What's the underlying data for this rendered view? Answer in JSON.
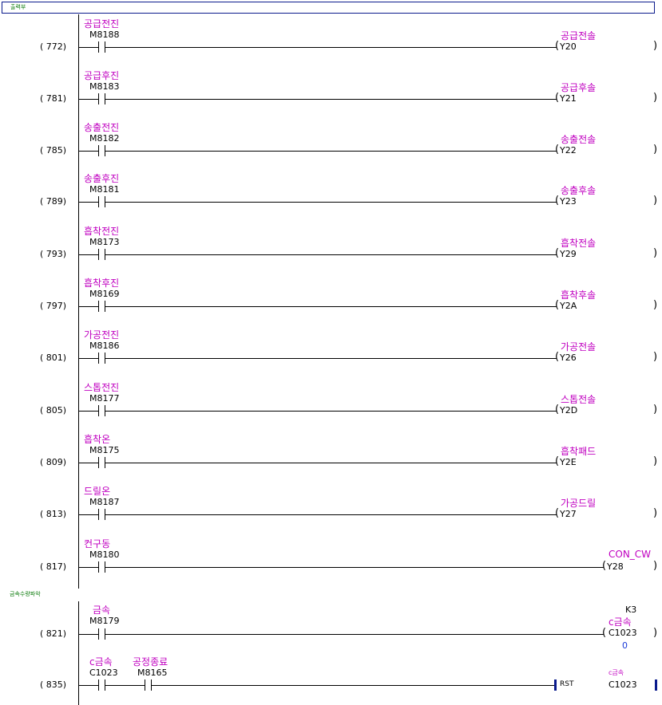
{
  "header": {
    "title": "출력부"
  },
  "rungs": [
    {
      "step": "(  772)",
      "label": "공급전진",
      "contact": "M8188",
      "coil_label": "공급전솔",
      "coil": "Y20"
    },
    {
      "step": "(  781)",
      "label": "공급후진",
      "contact": "M8183",
      "coil_label": "공급후솔",
      "coil": "Y21"
    },
    {
      "step": "(  785)",
      "label": "송출전진",
      "contact": "M8182",
      "coil_label": "송출전솔",
      "coil": "Y22"
    },
    {
      "step": "(  789)",
      "label": "송출후진",
      "contact": "M8181",
      "coil_label": "송출후솔",
      "coil": "Y23"
    },
    {
      "step": "(  793)",
      "label": "흡착전진",
      "contact": "M8173",
      "coil_label": "흡착전솔",
      "coil": "Y29"
    },
    {
      "step": "(  797)",
      "label": "흡착후진",
      "contact": "M8169",
      "coil_label": "흡착후솔",
      "coil": "Y2A"
    },
    {
      "step": "(  801)",
      "label": "가공전진",
      "contact": "M8186",
      "coil_label": "가공전솔",
      "coil": "Y26"
    },
    {
      "step": "(  805)",
      "label": "스톱전진",
      "contact": "M8177",
      "coil_label": "스톱전솔",
      "coil": "Y2D"
    },
    {
      "step": "(  809)",
      "label": "흡착온",
      "contact": "M8175",
      "coil_label": "흡착패드",
      "coil": "Y2E"
    },
    {
      "step": "(  813)",
      "label": "드릴온",
      "contact": "M8187",
      "coil_label": "가공드릴",
      "coil": "Y27"
    },
    {
      "step": "(  817)",
      "label": "컨구동",
      "contact": "M8180",
      "coil_label": "CON_CW",
      "coil": "Y28"
    }
  ],
  "section2": {
    "title": "금속수량파악"
  },
  "rung821": {
    "step": "(  821)",
    "label": "금속",
    "contact": "M8179",
    "k": "K3",
    "coil_label": "c금속",
    "coil": "C1023",
    "value": "0"
  },
  "rung835": {
    "step": "(  835)",
    "label1": "c금속",
    "contact1": "C1023",
    "label2": "공정종료",
    "contact2": "M8165",
    "instr": "RST",
    "coil_label": "c금속",
    "coil": "C1023"
  }
}
